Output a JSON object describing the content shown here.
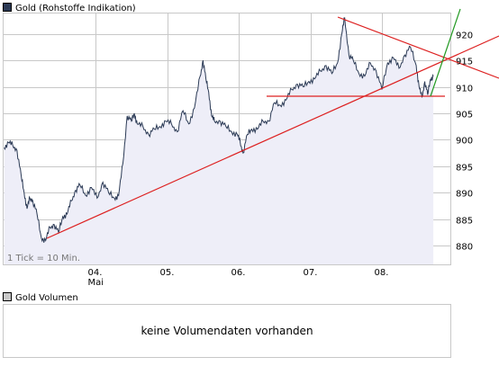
{
  "chart_title": "Gold (Rohstoffe Indikation)",
  "volume_title": "Gold Volumen",
  "volume_message": "keine Volumendaten vorhanden",
  "tick_note": "1 Tick = 10 Min.",
  "colors": {
    "price_line": "#2b3a55",
    "area_fill": "#eeeef8",
    "trend_red": "#dd2020",
    "trend_green": "#229922",
    "grid": "#c8c8c8",
    "price_swatch": "#2b3a55",
    "volume_swatch": "#c8c8c8"
  },
  "chart_data": {
    "type": "line",
    "title": "Gold (Rohstoffe Indikation)",
    "x_tick_labels": [
      {
        "label": "04.",
        "sublabel": "Mai",
        "x": 4
      },
      {
        "label": "05.",
        "sublabel": "",
        "x": 5
      },
      {
        "label": "06.",
        "sublabel": "",
        "x": 6
      },
      {
        "label": "07.",
        "sublabel": "",
        "x": 7
      },
      {
        "label": "08.",
        "sublabel": "",
        "x": 8
      }
    ],
    "y_ticks": [
      880,
      885,
      890,
      895,
      900,
      905,
      910,
      915,
      920
    ],
    "xlim": [
      2.7,
      8.97
    ],
    "ylim": [
      876.5,
      924.0
    ],
    "grid": true,
    "series": [
      {
        "x": [
          2.72,
          2.78,
          2.84,
          2.9,
          2.96,
          3.0,
          3.04,
          3.08,
          3.12,
          3.18,
          3.24,
          3.3,
          3.36,
          3.42,
          3.48,
          3.54,
          3.6,
          3.66,
          3.72,
          3.78,
          3.86,
          3.94,
          4.02,
          4.1,
          4.18,
          4.26,
          4.32,
          4.38,
          4.44,
          4.5,
          4.54,
          4.58,
          4.66,
          4.74,
          4.82,
          4.9,
          4.98,
          5.06,
          5.14,
          5.22,
          5.3,
          5.38,
          5.46,
          5.5,
          5.54,
          5.58,
          5.62,
          5.66,
          5.74,
          5.82,
          5.9,
          5.98,
          6.02,
          6.06,
          6.12,
          6.18,
          6.26,
          6.34,
          6.42,
          6.5,
          6.58,
          6.66,
          6.74,
          6.82,
          6.9,
          6.98,
          7.06,
          7.14,
          7.22,
          7.3,
          7.38,
          7.44,
          7.48,
          7.54,
          7.6,
          7.68,
          7.76,
          7.84,
          7.92,
          8.0,
          8.08,
          8.16,
          8.24,
          8.32,
          8.4,
          8.48,
          8.52,
          8.56,
          8.6,
          8.64,
          8.68,
          8.72
        ],
        "y": [
          898.5,
          899.5,
          899.0,
          898.0,
          893.0,
          890.0,
          887.0,
          889.0,
          888.5,
          886.0,
          881.5,
          881.0,
          883.5,
          884.0,
          882.5,
          885.5,
          886.0,
          888.5,
          890.5,
          891.5,
          889.5,
          891.0,
          889.0,
          892.0,
          890.0,
          889.0,
          889.5,
          895.5,
          904.5,
          903.5,
          905.0,
          903.0,
          902.5,
          901.0,
          902.0,
          902.5,
          903.5,
          903.0,
          901.5,
          905.5,
          903.0,
          906.0,
          912.0,
          915.0,
          911.5,
          909.0,
          904.5,
          903.5,
          903.5,
          902.5,
          901.5,
          901.0,
          899.5,
          897.5,
          901.0,
          902.0,
          902.0,
          903.5,
          903.5,
          907.0,
          906.5,
          907.5,
          909.5,
          910.5,
          910.0,
          911.0,
          911.5,
          913.0,
          914.0,
          912.5,
          914.5,
          920.0,
          923.0,
          916.0,
          915.0,
          912.5,
          912.0,
          914.5,
          913.0,
          909.5,
          914.5,
          915.5,
          913.5,
          916.0,
          917.5,
          914.0,
          910.0,
          908.0,
          911.0,
          908.5,
          911.5,
          912.0
        ]
      }
    ]
  }
}
